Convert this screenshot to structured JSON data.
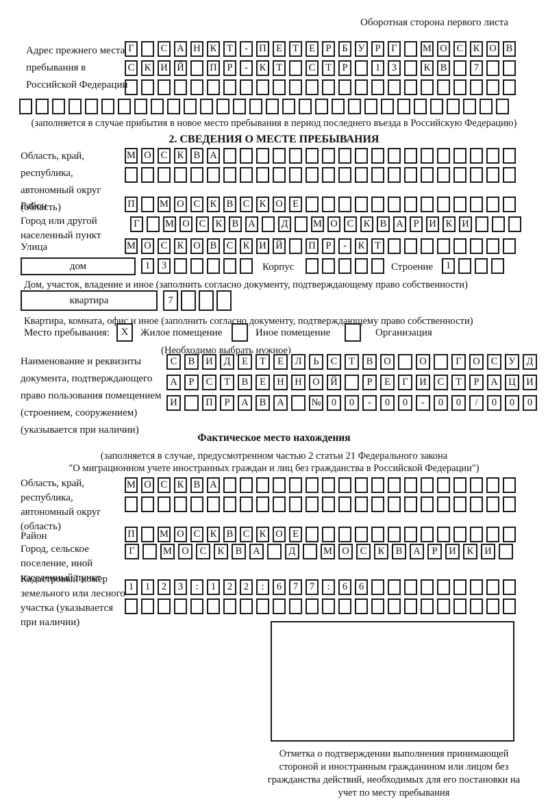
{
  "header": {
    "note": "Оборотная сторона первого листа"
  },
  "prev_address": {
    "label": "Адрес прежнего места пребывания в Российской Федерации",
    "rows": [
      "Г САНКТ-ПЕТЕРБУРГ МОСКОВ",
      "СКИЙ ПР-КТ СТР 13 КВ 7",
      "",
      ""
    ],
    "caption": "(заполняется в случае прибытия в новое место пребывания в период последнего въезда в Российскую Федерацию)"
  },
  "section2": {
    "title": "2. СВЕДЕНИЯ О МЕСТЕ ПРЕБЫВАНИЯ",
    "oblast_label": "Область, край, республика, автономный округ (область)",
    "oblast_rows": [
      "МОСКВА",
      ""
    ],
    "raion_label": "Район",
    "raion_value": "П МОСКВСКОЕ",
    "gorod_label": "Город или другой населенный пункт",
    "gorod_value": "Г МОСКВА Д МОСКВАРИКИ",
    "ulitsa_label": "Улица",
    "ulitsa_value": "МОСКОВСКИЙ ПР-КТ",
    "dom_box_label": "дом",
    "dom_value": "13",
    "korpus_label": "Корпус",
    "korpus_value": "",
    "stroenie_label": "Строение",
    "stroenie_value": "1",
    "dom_caption": "Дом, участок, владение и иное (заполнить согласно документу, подтверждающему право собственности)",
    "kvartira_box_label": "квартира",
    "kvartira_value": "7",
    "kvartira_caption": "Квартира, комната, офис и иное (заполнить согласно документу, подтверждающему право собственности)",
    "mesto_label": "Место пребывания:",
    "options": [
      {
        "label": "Жилое помещение",
        "mark": "X"
      },
      {
        "label": "Иное помещение",
        "mark": ""
      },
      {
        "label": "Организация",
        "mark": ""
      }
    ],
    "mesto_note": "(Необходимо выбрать нужное)",
    "doc_label": "Наименование и реквизиты документа, подтверждающего право пользования помещением (строением, сооружением) (указывается при наличии)",
    "doc_rows": [
      "СВИДЕТЕЛЬСТВО О ГОСУД",
      "АРСТВЕННОЙ РЕГИСТРАЦИ",
      "И ПРАВА №00-00-00/000"
    ]
  },
  "fact": {
    "title": "Фактическое место нахождения",
    "note_line1": "(заполняется в случае, предусмотренном частью 2 статьи 21 Федерального закона",
    "note_line2": "\"О миграционном учете иностранных граждан и лиц без гражданства в Российской Федерации\")",
    "oblast_label": "Область, край, республика, автономный округ (область)",
    "oblast_rows": [
      "МОСКВА",
      ""
    ],
    "raion_label": "Район",
    "raion_value": "П МОСКВСКОЕ",
    "gorod_label": "Город, сельское поселение, иной населенный пункт",
    "gorod_value": "Г МОСКВА Д МОСКВАРИКИ",
    "kadastr_label": "Кадастровый номер земельного или лесного участка (указывается при наличии)",
    "kadastr_rows": [
      "1123:122:677:66",
      ""
    ],
    "stamp_caption": "Отметка о подтверждении выполнения принимающей стороной и иностранным гражданином или лицом без гражданства действий, необходимых для его постановки на учет по месту пребывания"
  }
}
